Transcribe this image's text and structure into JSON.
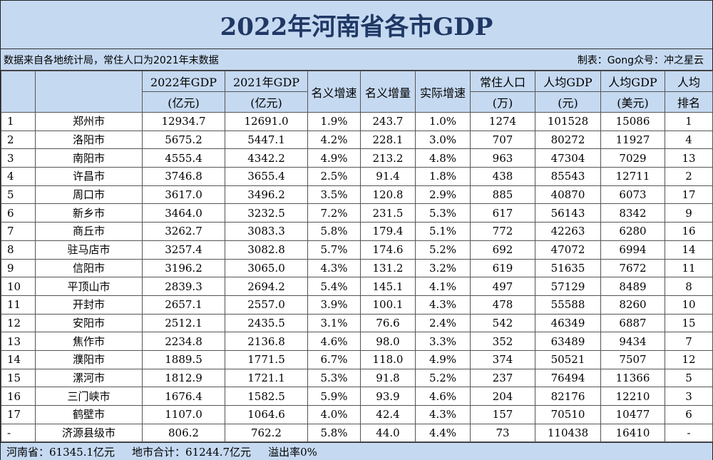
{
  "title": "2022年河南省各市GDP",
  "subtitle": {
    "left": "数据来自各地统计局，常住人口为2021年末数据",
    "right": "制表：Gong众号：冲之星云"
  },
  "headers": [
    [
      "",
      ""
    ],
    [
      "",
      ""
    ],
    [
      "2022年GDP",
      "(亿元)"
    ],
    [
      "2021年GDP",
      "(亿元)"
    ],
    [
      "名义增速",
      ""
    ],
    [
      "名义增量",
      ""
    ],
    [
      "实际增速",
      ""
    ],
    [
      "常住人口",
      "(万)"
    ],
    [
      "人均GDP",
      "(元)"
    ],
    [
      "人均GDP",
      "(美元)"
    ],
    [
      "人均",
      "排名"
    ]
  ],
  "rows": [
    [
      "1",
      "郑州市",
      "12934.7",
      "12691.0",
      "1.9%",
      "243.7",
      "1.0%",
      "1274",
      "101528",
      "15086",
      "1"
    ],
    [
      "2",
      "洛阳市",
      "5675.2",
      "5447.1",
      "4.2%",
      "228.1",
      "3.0%",
      "707",
      "80272",
      "11927",
      "4"
    ],
    [
      "3",
      "南阳市",
      "4555.4",
      "4342.2",
      "4.9%",
      "213.2",
      "4.8%",
      "963",
      "47304",
      "7029",
      "13"
    ],
    [
      "4",
      "许昌市",
      "3746.8",
      "3655.4",
      "2.5%",
      "91.4",
      "1.8%",
      "438",
      "85543",
      "12711",
      "2"
    ],
    [
      "5",
      "周口市",
      "3617.0",
      "3496.2",
      "3.5%",
      "120.8",
      "2.9%",
      "885",
      "40870",
      "6073",
      "17"
    ],
    [
      "6",
      "新乡市",
      "3464.0",
      "3232.5",
      "7.2%",
      "231.5",
      "5.3%",
      "617",
      "56143",
      "8342",
      "9"
    ],
    [
      "7",
      "商丘市",
      "3262.7",
      "3083.3",
      "5.8%",
      "179.4",
      "5.1%",
      "772",
      "42263",
      "6280",
      "16"
    ],
    [
      "8",
      "驻马店市",
      "3257.4",
      "3082.8",
      "5.7%",
      "174.6",
      "5.2%",
      "692",
      "47072",
      "6994",
      "14"
    ],
    [
      "9",
      "信阳市",
      "3196.2",
      "3065.0",
      "4.3%",
      "131.2",
      "3.2%",
      "619",
      "51635",
      "7672",
      "11"
    ],
    [
      "10",
      "平顶山市",
      "2839.3",
      "2694.2",
      "5.4%",
      "145.1",
      "4.1%",
      "497",
      "57129",
      "8489",
      "8"
    ],
    [
      "11",
      "开封市",
      "2657.1",
      "2557.0",
      "3.9%",
      "100.1",
      "4.3%",
      "478",
      "55588",
      "8260",
      "10"
    ],
    [
      "12",
      "安阳市",
      "2512.1",
      "2435.5",
      "3.1%",
      "76.6",
      "2.4%",
      "542",
      "46349",
      "6887",
      "15"
    ],
    [
      "13",
      "焦作市",
      "2234.8",
      "2136.8",
      "4.6%",
      "98.0",
      "3.3%",
      "352",
      "63489",
      "9434",
      "7"
    ],
    [
      "14",
      "濮阳市",
      "1889.5",
      "1771.5",
      "6.7%",
      "118.0",
      "4.9%",
      "374",
      "50521",
      "7507",
      "12"
    ],
    [
      "15",
      "漯河市",
      "1812.9",
      "1721.1",
      "5.3%",
      "91.8",
      "5.2%",
      "237",
      "76494",
      "11366",
      "5"
    ],
    [
      "16",
      "三门峡市",
      "1676.4",
      "1582.5",
      "5.9%",
      "93.9",
      "4.6%",
      "204",
      "82176",
      "12210",
      "3"
    ],
    [
      "17",
      "鹤壁市",
      "1107.0",
      "1064.6",
      "4.0%",
      "42.4",
      "4.3%",
      "157",
      "70510",
      "10477",
      "6"
    ],
    [
      "-",
      "济源县级市",
      "806.2",
      "762.2",
      "5.8%",
      "44.0",
      "4.4%",
      "73",
      "110438",
      "16410",
      "-"
    ]
  ],
  "footer": {
    "province": "河南省：61345.1亿元",
    "city_total": "地市合计：61244.7亿元",
    "overflow": "溢出率0%"
  }
}
